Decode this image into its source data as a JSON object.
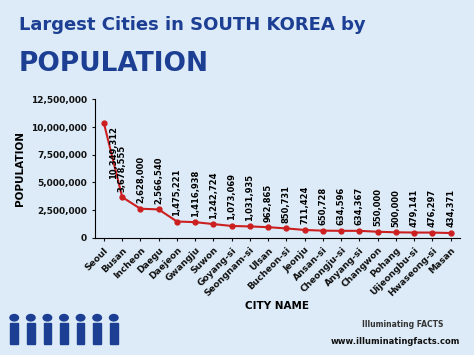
{
  "chart_data": {
    "type": "line",
    "title": "Largest Cities in SOUTH KOREA by",
    "subtitle": "POPULATION",
    "x_label": "CITY NAME",
    "y_label": "POPULATION",
    "annotations": [
      "Illuminating FACTS",
      "www.illuminatingfacts.com"
    ],
    "categories": [
      "Seoul",
      "Busan",
      "Incheon",
      "Daegu",
      "Daejeon",
      "Gwangju",
      "Suwon",
      "Goyang-si",
      "Seongnam-si",
      "Ulsan",
      "Bucheon-si",
      "Jeonju",
      "Ansan-si",
      "Cheongju-si",
      "Anyang-si",
      "Changwon",
      "Pohang",
      "Uijeongbu-si",
      "Hwaseong-si",
      "Masan"
    ],
    "values": [
      10349312,
      3678555,
      2628000,
      2566540,
      1475221,
      1416938,
      1242724,
      1073069,
      1031935,
      962865,
      850731,
      711424,
      650728,
      634596,
      634367,
      550000,
      500000,
      479141,
      476297,
      434371
    ],
    "value_labels": [
      "10,349,312",
      "3,678,555",
      "2,628,000",
      "2,566,540",
      "1,475,221",
      "1,416,938",
      "1,242,724",
      "1,073,069",
      "1,031,935",
      "962,865",
      "850,731",
      "711,424",
      "650,728",
      "634,596",
      "634,367",
      "550,000",
      "500,000",
      "479,141",
      "476,297",
      "434,371"
    ],
    "data_labels": true,
    "color": "#cc1f1f",
    "marker": "o",
    "line_style": "solid",
    "grid": false,
    "ylim": [
      0,
      12500000
    ],
    "yticks": [
      0,
      {
        "value": 2500000,
        "label": "2,500,000"
      },
      {
        "value": 5000000,
        "label": "5,000,000"
      },
      {
        "value": 7500000,
        "label": "7,500,000"
      },
      {
        "value": 10000000,
        "label": "10,000,000"
      },
      {
        "value": 12500000,
        "label": "12,500,000"
      }
    ]
  }
}
